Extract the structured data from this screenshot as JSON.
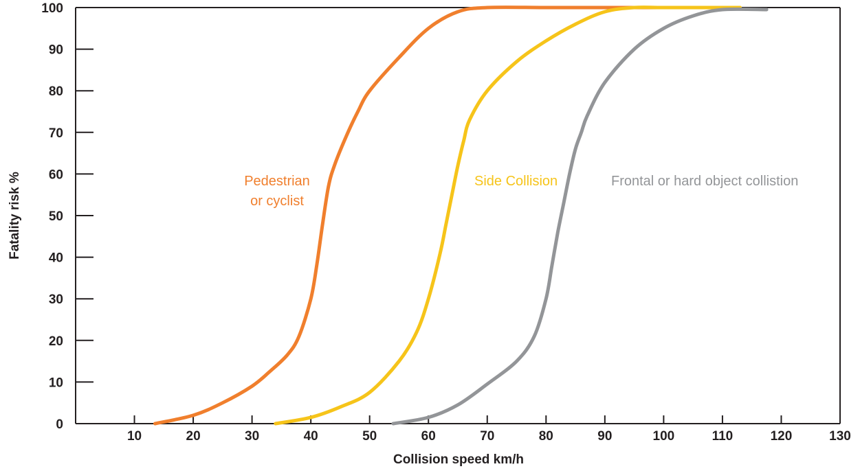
{
  "chart_data": {
    "type": "line",
    "title": "",
    "xlabel": "Collision speed km/h",
    "ylabel": "Fatality risk %",
    "xlim": [
      0,
      130
    ],
    "ylim": [
      0,
      100
    ],
    "xticks": [
      10,
      20,
      30,
      40,
      50,
      60,
      70,
      80,
      90,
      100,
      110,
      120,
      130
    ],
    "yticks": [
      0,
      10,
      20,
      30,
      40,
      50,
      60,
      70,
      80,
      90,
      100
    ],
    "grid": false,
    "series": [
      {
        "key": "pedestrian",
        "label_lines": [
          "Pedestrian",
          "or cyclist"
        ],
        "color": "#f07f2d",
        "x": [
          13.5,
          20,
          25,
          30,
          33,
          36,
          38,
          40,
          41,
          42,
          43,
          44,
          46,
          48,
          50,
          55,
          60,
          65,
          70,
          80,
          90,
          100
        ],
        "y": [
          0,
          2,
          5,
          9,
          12.5,
          16.5,
          21,
          30,
          38,
          48,
          57,
          62,
          69,
          75,
          80,
          88,
          95,
          99,
          100,
          100,
          100,
          100
        ]
      },
      {
        "key": "side",
        "label_lines": [
          "Side Collision"
        ],
        "color": "#f6c41a",
        "x": [
          34,
          40,
          45,
          50,
          55,
          58,
          60,
          62,
          63,
          64,
          65,
          66,
          67,
          70,
          75,
          80,
          85,
          90,
          95,
          100,
          110,
          113
        ],
        "y": [
          0,
          1.5,
          4,
          7.5,
          15,
          22,
          30,
          41,
          48,
          55,
          62,
          68,
          73,
          80,
          87,
          92,
          96,
          99,
          100,
          100,
          100,
          100
        ]
      },
      {
        "key": "frontal",
        "label_lines": [
          "Frontal or hard object collistion"
        ],
        "color": "#939598",
        "x": [
          54,
          60,
          65,
          70,
          75,
          78,
          80,
          81,
          82,
          83,
          84,
          85,
          86,
          87,
          90,
          95,
          100,
          105,
          110,
          117.5
        ],
        "y": [
          0,
          1.5,
          4.5,
          9.5,
          15,
          21,
          30,
          38,
          46,
          53,
          60,
          66,
          70,
          74,
          82,
          90,
          95,
          98,
          99.5,
          99.5
        ]
      }
    ]
  }
}
